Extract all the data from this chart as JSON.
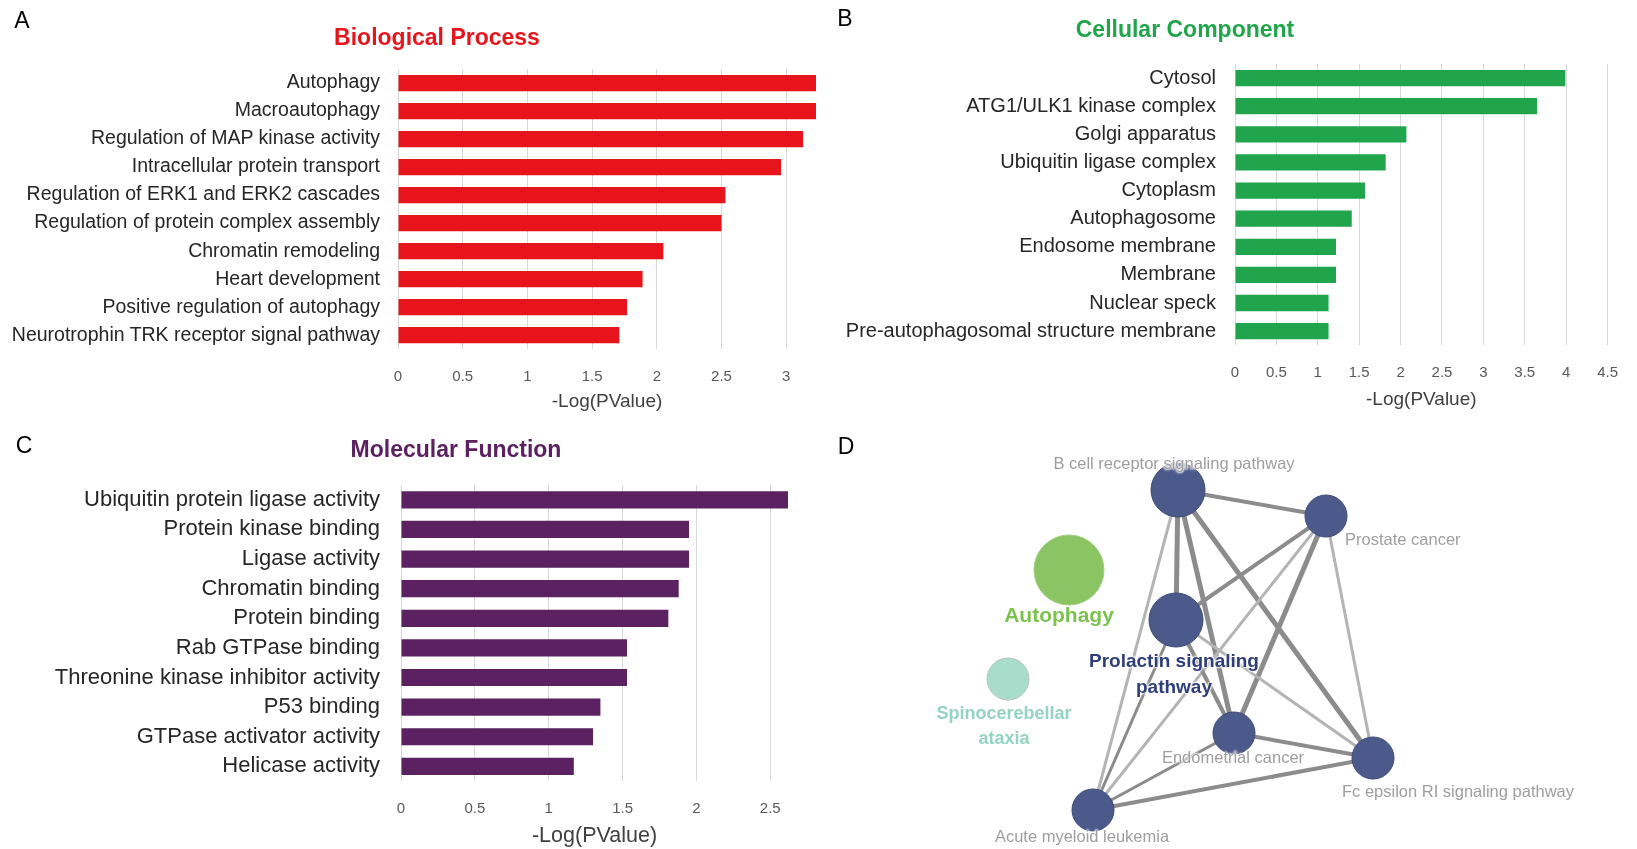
{
  "chart_data": [
    {
      "type": "bar",
      "orientation": "horizontal",
      "title": "Biological Process",
      "xlabel": "-Log(PValue)",
      "categories": [
        "Autophagy",
        "Macroautophagy",
        "Regulation of MAP kinase activity",
        "Intracellular protein transport",
        "Regulation of ERK1 and ERK2 cascades",
        "Regulation of protein complex assembly",
        "Chromatin remodeling",
        "Heart development",
        "Positive regulation of autophagy",
        "Neurotrophin TRK receptor signal pathway"
      ],
      "values": [
        3.23,
        3.23,
        3.13,
        2.96,
        2.53,
        2.5,
        2.05,
        1.89,
        1.77,
        1.71
      ],
      "color": "#e8141c",
      "xlim": [
        0,
        3.23
      ],
      "xticks": [
        0,
        0.5,
        1,
        1.5,
        2,
        2.5,
        3
      ],
      "grid": "x",
      "legend": false,
      "annotations": [
        "A"
      ]
    },
    {
      "type": "bar",
      "orientation": "horizontal",
      "title": "Cellular Component",
      "xlabel": "-Log(PValue)",
      "categories": [
        "Cytosol",
        "ATG1/ULK1 kinase complex",
        "Golgi apparatus",
        "Ubiquitin ligase complex",
        "Cytoplasm",
        "Autophagosome",
        "Endosome membrane",
        "Membrane",
        "Nuclear speck",
        "Pre-autophagosomal structure membrane"
      ],
      "values": [
        3.99,
        3.65,
        2.07,
        1.82,
        1.57,
        1.41,
        1.22,
        1.22,
        1.13,
        1.13
      ],
      "color": "#21a54c",
      "xlim": [
        0,
        4.5
      ],
      "xticks": [
        0,
        0.5,
        1,
        1.5,
        2,
        2.5,
        3,
        3.5,
        4,
        4.5
      ],
      "grid": "x",
      "legend": false,
      "annotations": [
        "B"
      ]
    },
    {
      "type": "bar",
      "orientation": "horizontal",
      "title": "Molecular Function",
      "xlabel": "-Log(PValue)",
      "categories": [
        "Ubiquitin protein ligase activity",
        "Protein kinase binding",
        "Ligase activity",
        "Chromatin binding",
        "Protein binding",
        "Rab GTPase binding",
        "Threonine kinase inhibitor activity",
        "P53 binding",
        "GTPase activator activity",
        "Helicase activity"
      ],
      "values": [
        2.62,
        1.95,
        1.95,
        1.88,
        1.81,
        1.53,
        1.53,
        1.35,
        1.3,
        1.17
      ],
      "color": "#5b2160",
      "xlim": [
        0,
        2.62
      ],
      "xticks": [
        0,
        0.5,
        1,
        1.5,
        2,
        2.5
      ],
      "grid": "x",
      "legend": false,
      "annotations": [
        "C"
      ]
    },
    {
      "type": "other",
      "annotations": [
        "D",
        "B cell receptor signaling pathway",
        "Prostate cancer",
        "Autophagy",
        "Prolactin signaling pathway",
        "Spinocerebellar ataxia",
        "Endometrial cancer",
        "Fc epsilon RI signaling pathway",
        "Acute myeloid leukemia"
      ]
    }
  ]
}
